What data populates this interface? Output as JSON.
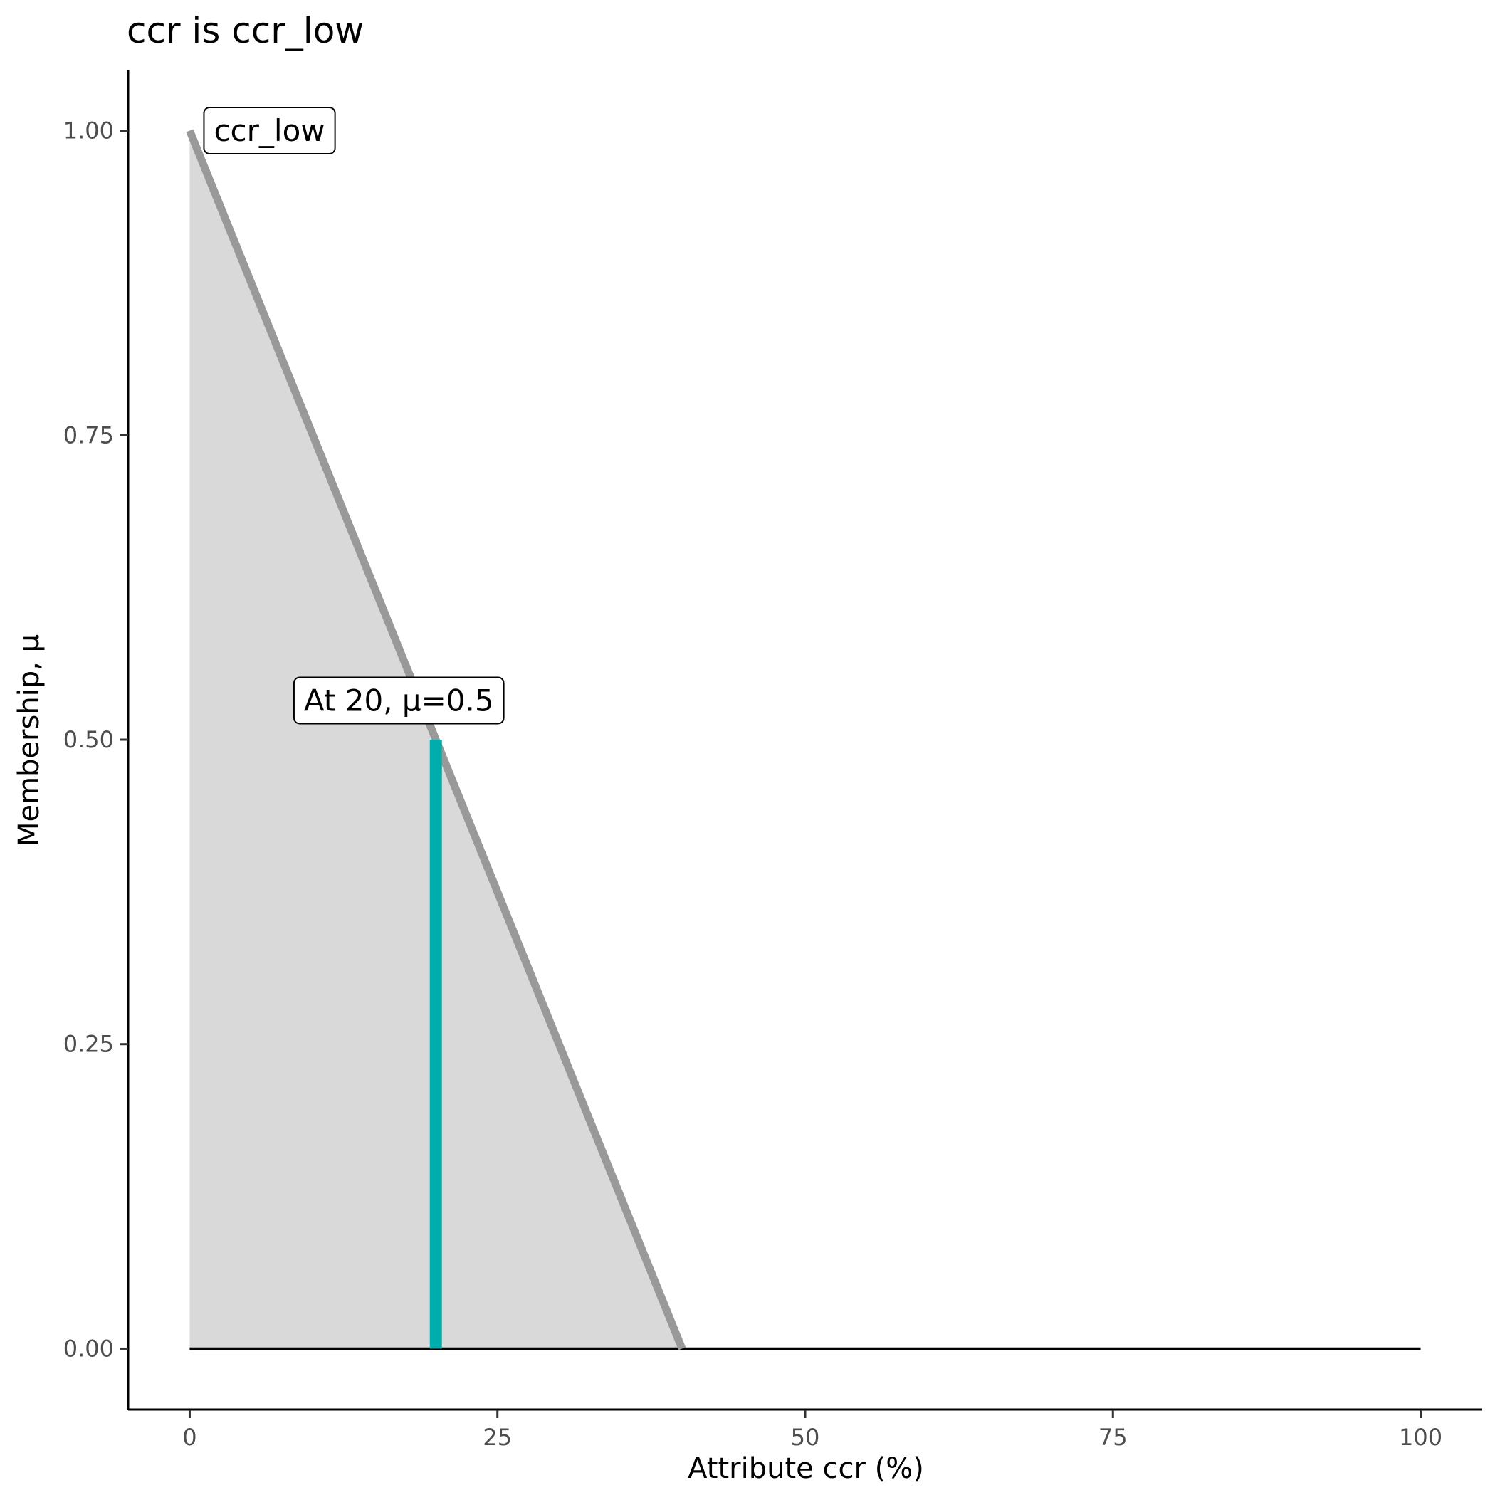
{
  "chart_data": {
    "type": "area",
    "title": "ccr is ccr_low",
    "xlabel": "Attribute ccr (%)",
    "ylabel": "Membership, μ",
    "xlim": [
      -5,
      105
    ],
    "ylim": [
      -0.05,
      1.05
    ],
    "x_ticks": [
      0,
      25,
      50,
      75,
      100
    ],
    "x_tick_labels": [
      "0",
      "25",
      "50",
      "75",
      "100"
    ],
    "y_ticks": [
      0,
      0.25,
      0.5,
      0.75,
      1
    ],
    "y_tick_labels": [
      "0.00",
      "0.25",
      "0.50",
      "0.75",
      "1.00"
    ],
    "grid": false,
    "series": [
      {
        "name": "ccr_low",
        "x": [
          0,
          40,
          100
        ],
        "y": [
          1,
          0,
          0
        ],
        "color": "#999999",
        "fill": "#d9d9d9"
      }
    ],
    "highlight": {
      "x": 20,
      "mu": 0.5,
      "color": "#00adad",
      "label": "At 20, μ=0.5"
    },
    "set_label": "ccr_low"
  }
}
